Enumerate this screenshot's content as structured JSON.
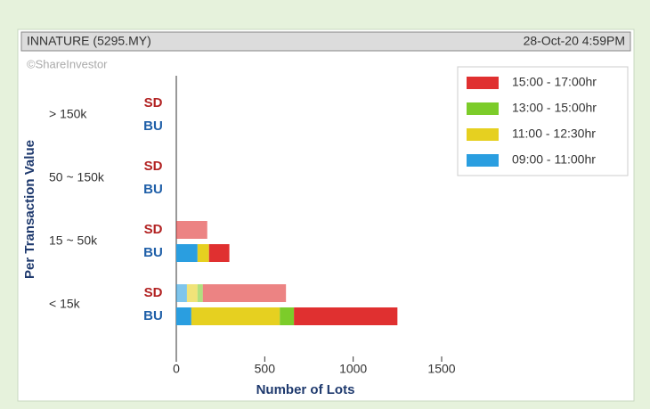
{
  "chart_data": {
    "type": "stacked-barh",
    "header": {
      "title": "INNATURE (5295.MY)",
      "timestamp": "28-Oct-20 4:59PM",
      "watermark": "©ShareInvestor"
    },
    "ylabel": "Per Transaction Value",
    "xlabel": "Number of Lots",
    "categories": [
      "> 150k",
      "50 ~ 150k",
      "15 ~ 50k",
      "< 15k"
    ],
    "sides": [
      "SD",
      "BU"
    ],
    "series": [
      {
        "name": "09:00 - 11:00hr",
        "color": "#2a9ee0",
        "values": [
          [
            0,
            0
          ],
          [
            0,
            0
          ],
          [
            0,
            120
          ],
          [
            60,
            85
          ]
        ]
      },
      {
        "name": "11:00 - 12:30hr",
        "color": "#e6d020",
        "values": [
          [
            0,
            0
          ],
          [
            0,
            0
          ],
          [
            0,
            65
          ],
          [
            60,
            500
          ]
        ]
      },
      {
        "name": "13:00 - 15:00hr",
        "color": "#7ccc2a",
        "values": [
          [
            0,
            0
          ],
          [
            0,
            0
          ],
          [
            0,
            0
          ],
          [
            30,
            80
          ]
        ]
      },
      {
        "name": "15:00 - 17:00hr",
        "color": "#e03030",
        "values": [
          [
            0,
            0
          ],
          [
            0,
            0
          ],
          [
            175,
            115
          ],
          [
            470,
            585
          ]
        ]
      }
    ],
    "xlim": [
      0,
      1500
    ],
    "xticks": [
      0,
      500,
      1000,
      1500
    ],
    "legend": "upper right"
  }
}
